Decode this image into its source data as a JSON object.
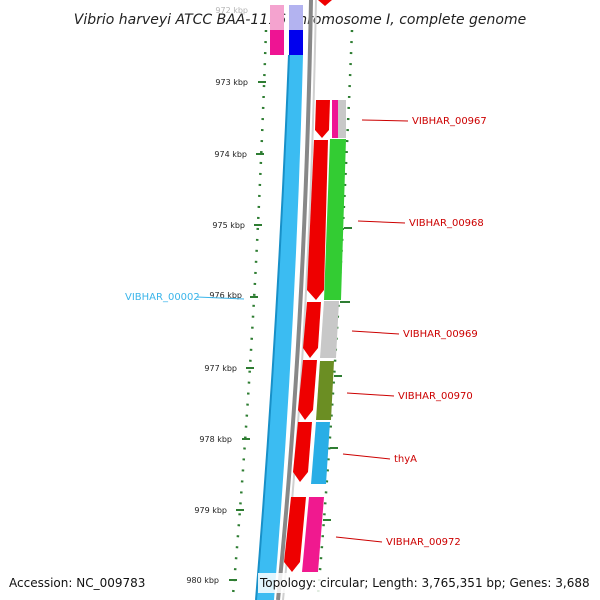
{
  "title": "Vibrio harveyi ATCC BAA-1116 chromosome I, complete genome",
  "ticks": [
    {
      "label": "972 kbp"
    },
    {
      "label": "973 kbp"
    },
    {
      "label": "974 kbp"
    },
    {
      "label": "975 kbp"
    },
    {
      "label": "976 kbp"
    },
    {
      "label": "977 kbp"
    },
    {
      "label": "978 kbp"
    },
    {
      "label": "979 kbp"
    },
    {
      "label": "980 kbp"
    }
  ],
  "gene_labels": [
    {
      "name": "VIBHAR_00967"
    },
    {
      "name": "VIBHAR_00968"
    },
    {
      "name": "VIBHAR_00969"
    },
    {
      "name": "VIBHAR_00970"
    },
    {
      "name": "thyA"
    },
    {
      "name": "VIBHAR_00972"
    }
  ],
  "left_label": "VIBHAR_00002",
  "footer": {
    "accession": "Accession: NC_009783",
    "topology": "Topology: circular; Length: 3,765,351 bp; Genes: 3,688"
  },
  "colors": {
    "cds_red": "#ee0000",
    "rna_blue": "#3bbcf2",
    "backbone_gray": "#888888",
    "label_red": "#cc0000",
    "tick_green": "#2e7d32",
    "magenta": "#ee1493",
    "green": "#33cc33",
    "olive": "#6b8e23",
    "lightgray": "#c8c8c8",
    "sky": "#29aee6",
    "pink": "#f06ab4"
  }
}
